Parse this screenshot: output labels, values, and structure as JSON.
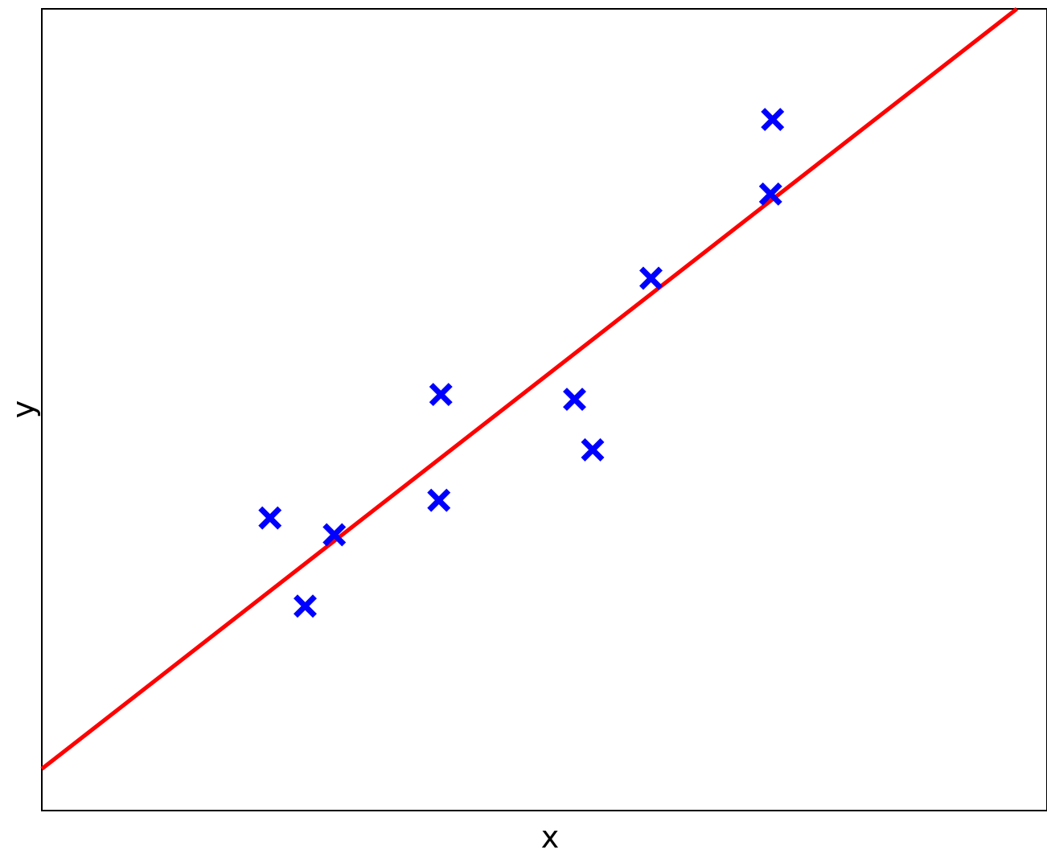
{
  "chart_data": {
    "type": "scatter",
    "xlabel": "x",
    "ylabel": "y",
    "xlim": [
      0,
      10
    ],
    "ylim": [
      0,
      10
    ],
    "grid": false,
    "series": [
      {
        "kind": "scatter",
        "marker": "x",
        "color": "#0000ff",
        "x": [
          2.27,
          2.62,
          2.91,
          3.95,
          3.97,
          5.3,
          5.48,
          6.06,
          7.25,
          7.27
        ],
        "y": [
          3.65,
          2.55,
          3.44,
          3.87,
          5.19,
          5.13,
          4.5,
          6.64,
          7.69,
          8.62
        ]
      },
      {
        "kind": "line",
        "color": "#ff0000",
        "x": [
          0,
          9.7
        ],
        "y": [
          0.52,
          10
        ]
      }
    ]
  }
}
